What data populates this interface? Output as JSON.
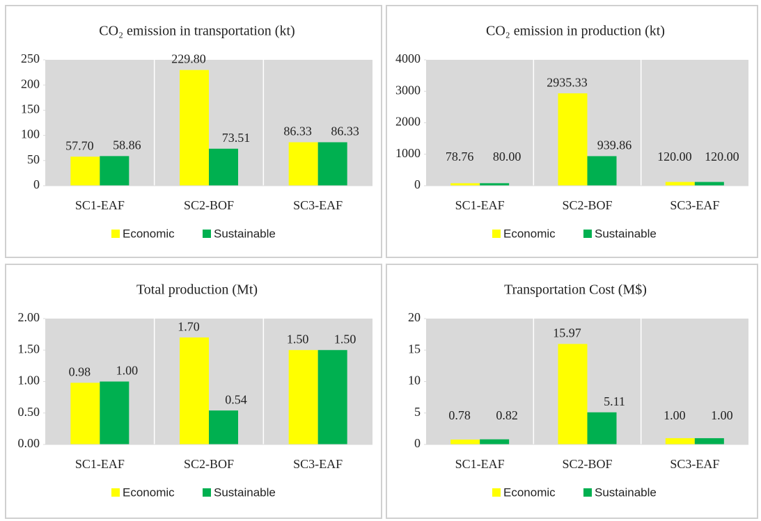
{
  "chart_data": [
    {
      "type": "bar",
      "title": "CO₂ emission in transportation (kt)",
      "categories": [
        "SC1-EAF",
        "SC2-BOF",
        "SC3-EAF"
      ],
      "series": [
        {
          "name": "Economic",
          "color": "#ffff00",
          "values": [
            57.7,
            229.8,
            86.33
          ],
          "value_labels": [
            "57.70",
            "229.80",
            "86.33"
          ]
        },
        {
          "name": "Sustainable",
          "color": "#00b050",
          "values": [
            58.86,
            73.51,
            86.33
          ],
          "value_labels": [
            "58.86",
            "73.51",
            "86.33"
          ]
        }
      ],
      "ylim": [
        0,
        250
      ],
      "yticks": [
        0,
        50,
        100,
        150,
        200,
        250
      ],
      "legend": "bottom"
    },
    {
      "type": "bar",
      "title": "CO₂ emission in production (kt)",
      "categories": [
        "SC1-EAF",
        "SC2-BOF",
        "SC3-EAF"
      ],
      "series": [
        {
          "name": "Economic",
          "color": "#ffff00",
          "values": [
            78.76,
            2935.33,
            120.0
          ],
          "value_labels": [
            "78.76",
            "2935.33",
            "120.00"
          ]
        },
        {
          "name": "Sustainable",
          "color": "#00b050",
          "values": [
            80.0,
            939.86,
            120.0
          ],
          "value_labels": [
            "80.00",
            "939.86",
            "120.00"
          ]
        }
      ],
      "ylim": [
        0,
        4000
      ],
      "yticks": [
        0,
        1000,
        2000,
        3000,
        4000
      ],
      "legend": "bottom"
    },
    {
      "type": "bar",
      "title": "Total production (Mt)",
      "categories": [
        "SC1-EAF",
        "SC2-BOF",
        "SC3-EAF"
      ],
      "series": [
        {
          "name": "Economic",
          "color": "#ffff00",
          "values": [
            0.98,
            1.7,
            1.5
          ],
          "value_labels": [
            "0.98",
            "1.70",
            "1.50"
          ]
        },
        {
          "name": "Sustainable",
          "color": "#00b050",
          "values": [
            1.0,
            0.54,
            1.5
          ],
          "value_labels": [
            "1.00",
            "0.54",
            "1.50"
          ]
        }
      ],
      "ylim": [
        0,
        2
      ],
      "yticks": [
        {
          "value": 0,
          "label": "0.00"
        },
        {
          "value": 0.5,
          "label": "0.50"
        },
        {
          "value": 1,
          "label": "1.00"
        },
        {
          "value": 1.5,
          "label": "1.50"
        },
        {
          "value": 2,
          "label": "2.00"
        }
      ],
      "legend": "bottom"
    },
    {
      "type": "bar",
      "title": "Transportation Cost (M$)",
      "categories": [
        "SC1-EAF",
        "SC2-BOF",
        "SC3-EAF"
      ],
      "series": [
        {
          "name": "Economic",
          "color": "#ffff00",
          "values": [
            0.78,
            15.97,
            1.0
          ],
          "value_labels": [
            "0.78",
            "15.97",
            "1.00"
          ]
        },
        {
          "name": "Sustainable",
          "color": "#00b050",
          "values": [
            0.82,
            5.11,
            1.0
          ],
          "value_labels": [
            "0.82",
            "5.11",
            "1.00"
          ]
        }
      ],
      "ylim": [
        0,
        20
      ],
      "yticks": [
        0,
        5,
        10,
        15,
        20
      ],
      "legend": "bottom"
    }
  ]
}
